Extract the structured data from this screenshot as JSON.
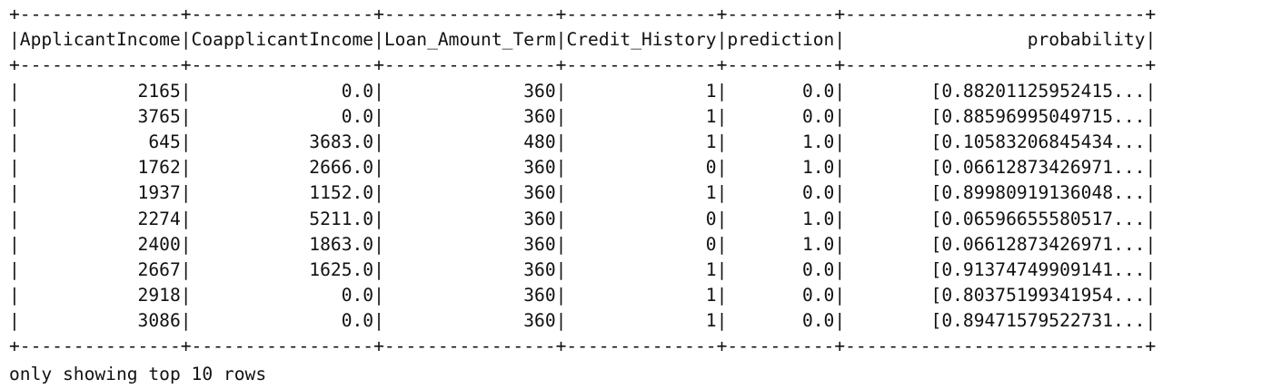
{
  "table": {
    "columns": [
      {
        "name": "ApplicantIncome",
        "width": 15,
        "align": "right"
      },
      {
        "name": "CoapplicantIncome",
        "width": 17,
        "align": "right"
      },
      {
        "name": "Loan_Amount_Term",
        "width": 16,
        "align": "right"
      },
      {
        "name": "Credit_History",
        "width": 14,
        "align": "right"
      },
      {
        "name": "prediction",
        "width": 10,
        "align": "right"
      },
      {
        "name": "probability",
        "width": 28,
        "align": "right"
      }
    ],
    "rows": [
      [
        "2165",
        "0.0",
        "360",
        "1",
        "0.0",
        "[0.88201125952415..."
      ],
      [
        "3765",
        "0.0",
        "360",
        "1",
        "0.0",
        "[0.88596995049715..."
      ],
      [
        "645",
        "3683.0",
        "480",
        "1",
        "1.0",
        "[0.10583206845434..."
      ],
      [
        "1762",
        "2666.0",
        "360",
        "0",
        "1.0",
        "[0.06612873426971..."
      ],
      [
        "1937",
        "1152.0",
        "360",
        "1",
        "0.0",
        "[0.89980919136048..."
      ],
      [
        "2274",
        "5211.0",
        "360",
        "0",
        "1.0",
        "[0.06596655580517..."
      ],
      [
        "2400",
        "1863.0",
        "360",
        "0",
        "1.0",
        "[0.06612873426971..."
      ],
      [
        "2667",
        "1625.0",
        "360",
        "1",
        "0.0",
        "[0.91374749909141..."
      ],
      [
        "2918",
        "0.0",
        "360",
        "1",
        "0.0",
        "[0.80375199341954..."
      ],
      [
        "3086",
        "0.0",
        "360",
        "1",
        "0.0",
        "[0.89471579522731..."
      ]
    ]
  },
  "footer": "only showing top 10 rows"
}
